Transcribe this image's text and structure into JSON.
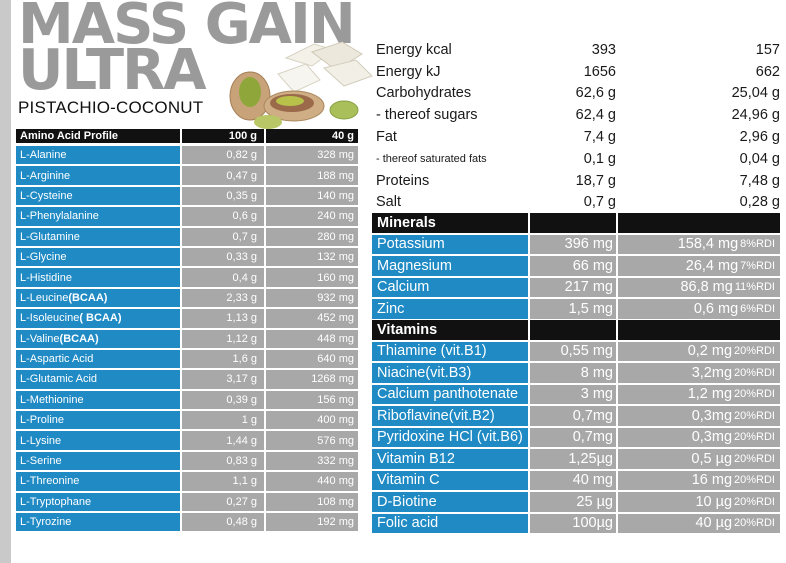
{
  "brand": {
    "line1": "MASS GAIN",
    "line2": "ULTRA",
    "flavor": "PISTACHIO-COCONUT"
  },
  "amino": {
    "header": {
      "name": "Amino Acid Profile",
      "col1": "100 g",
      "col2": "40 g"
    },
    "rows": [
      {
        "name": "L-Alanine",
        "tag": "",
        "v100": "0,82 g",
        "v40": "328 mg"
      },
      {
        "name": "L-Arginine",
        "tag": "",
        "v100": "0,47 g",
        "v40": "188 mg"
      },
      {
        "name": "L-Cysteine",
        "tag": "",
        "v100": "0,35 g",
        "v40": "140 mg"
      },
      {
        "name": "L-Phenylalanine",
        "tag": "",
        "v100": "0,6 g",
        "v40": "240 mg"
      },
      {
        "name": "L-Glutamine",
        "tag": "",
        "v100": "0,7 g",
        "v40": "280 mg"
      },
      {
        "name": "L-Glycine",
        "tag": "",
        "v100": "0,33 g",
        "v40": "132 mg"
      },
      {
        "name": "L-Histidine",
        "tag": "",
        "v100": "0,4 g",
        "v40": "160 mg"
      },
      {
        "name": "L-Leucine ",
        "tag": "(BCAA)",
        "v100": "2,33 g",
        "v40": "932 mg"
      },
      {
        "name": "L-Isoleucine ",
        "tag": "( BCAA)",
        "v100": "1,13 g",
        "v40": "452 mg"
      },
      {
        "name": "L-Valine ",
        "tag": "(BCAA)",
        "v100": "1,12 g",
        "v40": "448 mg"
      },
      {
        "name": "L-Aspartic Acid",
        "tag": "",
        "v100": "1,6 g",
        "v40": "640 mg"
      },
      {
        "name": "L-Glutamic Acid",
        "tag": "",
        "v100": "3,17 g",
        "v40": "1268 mg"
      },
      {
        "name": "L-Methionine",
        "tag": "",
        "v100": "0,39 g",
        "v40": "156 mg"
      },
      {
        "name": "L-Proline",
        "tag": "",
        "v100": "1 g",
        "v40": "400 mg"
      },
      {
        "name": "L-Lysine",
        "tag": "",
        "v100": "1,44 g",
        "v40": "576 mg"
      },
      {
        "name": "L-Serine",
        "tag": "",
        "v100": "0,83 g",
        "v40": "332 mg"
      },
      {
        "name": "L-Threonine",
        "tag": "",
        "v100": "1,1 g",
        "v40": "440 mg"
      },
      {
        "name": "L-Tryptophane",
        "tag": "",
        "v100": "0,27 g",
        "v40": "108 mg"
      },
      {
        "name": "L-Tyrozine",
        "tag": "",
        "v100": "0,48 g",
        "v40": "192 mg"
      }
    ]
  },
  "nutrition": [
    {
      "label": "Energy  kcal",
      "v100": "393",
      "v40": "157"
    },
    {
      "label": "Energy  kJ",
      "v100": "1656",
      "v40": "662"
    },
    {
      "label": "Carbohydrates",
      "v100": "62,6 g",
      "v40": "25,04 g"
    },
    {
      "label": "- thereof sugars",
      "v100": "62,4 g",
      "v40": "24,96 g"
    },
    {
      "label": "Fat",
      "v100": "7,4 g",
      "v40": "2,96 g"
    },
    {
      "label": "- thereof saturated fats",
      "v100": "0,1 g",
      "v40": "0,04 g",
      "small": true
    },
    {
      "label": "Proteins",
      "v100": "18,7 g",
      "v40": "7,48 g"
    },
    {
      "label": "Salt",
      "v100": "0,7 g",
      "v40": "0,28 g"
    }
  ],
  "minerals": {
    "header": "Minerals",
    "rows": [
      {
        "name": "Potassium",
        "v100": "396 mg",
        "v40": "158,4 mg",
        "rdi": "8%RDI"
      },
      {
        "name": "Magnesium",
        "v100": "66 mg",
        "v40": "26,4 mg",
        "rdi": "7%RDI"
      },
      {
        "name": "Calcium",
        "v100": "217 mg",
        "v40": "86,8 mg",
        "rdi": "11%RDI"
      },
      {
        "name": "Zinc",
        "v100": "1,5 mg",
        "v40": "0,6 mg",
        "rdi": "6%RDI"
      }
    ]
  },
  "vitamins": {
    "header": "Vitamins",
    "rows": [
      {
        "name": "Thiamine (vit.B1)",
        "v100": "0,55 mg",
        "v40": "0,2 mg",
        "rdi": "20%RDI"
      },
      {
        "name": "Niacine(vit.B3)",
        "v100": "8 mg",
        "v40": "3,2mg",
        "rdi": "20%RDI"
      },
      {
        "name": "Calcium panthotenate",
        "v100": "3 mg",
        "v40": "1,2 mg",
        "rdi": "20%RDI"
      },
      {
        "name": "Riboflavine(vit.B2)",
        "v100": "0,7mg",
        "v40": "0,3mg",
        "rdi": "20%RDI"
      },
      {
        "name": "Pyridoxine HCl (vit.B6)",
        "v100": "0,7mg",
        "v40": "0,3mg",
        "rdi": "20%RDI"
      },
      {
        "name": "Vitamin B12",
        "v100": "1,25µg",
        "v40": "0,5 µg",
        "rdi": "20%RDI"
      },
      {
        "name": "Vitamin C",
        "v100": "40 mg",
        "v40": "16 mg",
        "rdi": "20%RDI"
      },
      {
        "name": "D-Biotine",
        "v100": "25 µg",
        "v40": "10 µg",
        "rdi": "20%RDI"
      },
      {
        "name": "Folic acid",
        "v100": "100µg",
        "v40": "40 µg",
        "rdi": "20%RDI"
      }
    ]
  },
  "colors": {
    "blue": "#1f8ac4",
    "gray": "#a8a8a8",
    "header": "#111111",
    "brand": "#9a9a9a"
  }
}
